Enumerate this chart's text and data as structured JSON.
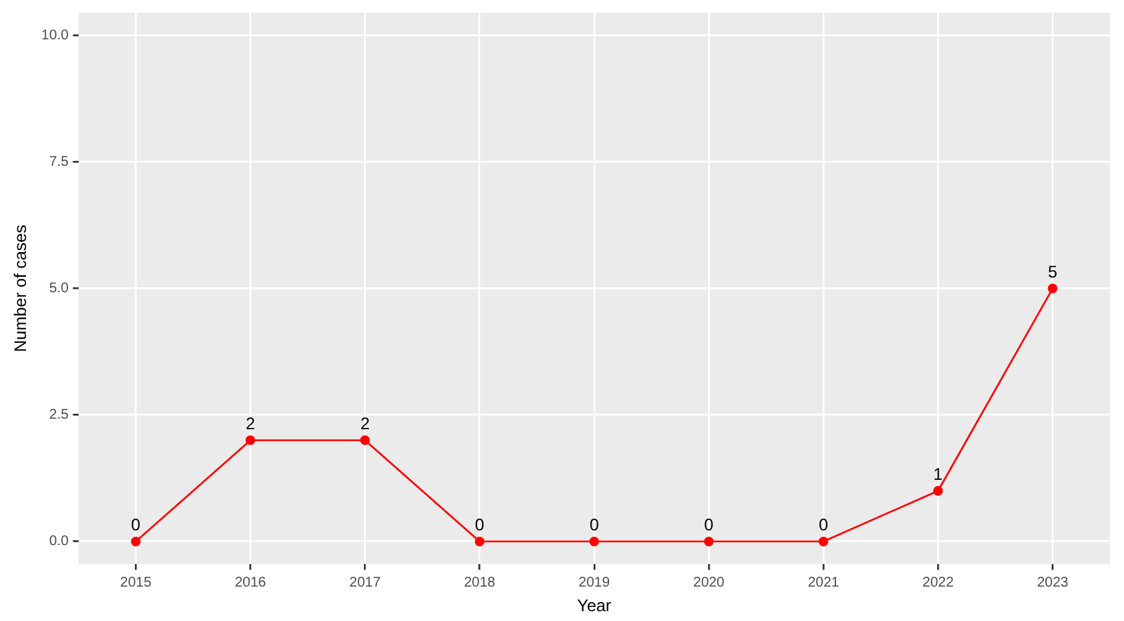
{
  "chart_data": {
    "type": "line",
    "xlabel": "Year",
    "ylabel": "Number of cases",
    "categories": [
      "2015",
      "2016",
      "2017",
      "2018",
      "2019",
      "2020",
      "2021",
      "2022",
      "2023"
    ],
    "series": [
      {
        "color": "#ff0000",
        "values": [
          0,
          2,
          2,
          0,
          0,
          0,
          0,
          1,
          5
        ]
      }
    ],
    "ylim": [
      -0.45,
      10.45
    ],
    "yticks": [
      {
        "value": 0,
        "label": "0.0"
      },
      {
        "value": 2.5,
        "label": "2.5"
      },
      {
        "value": 5,
        "label": "5.0"
      },
      {
        "value": 7.5,
        "label": "7.5"
      },
      {
        "value": 10,
        "label": "10.0"
      }
    ],
    "grid": true,
    "legend": false,
    "marker": "circle",
    "line_style": "solid",
    "data_labels": true
  }
}
